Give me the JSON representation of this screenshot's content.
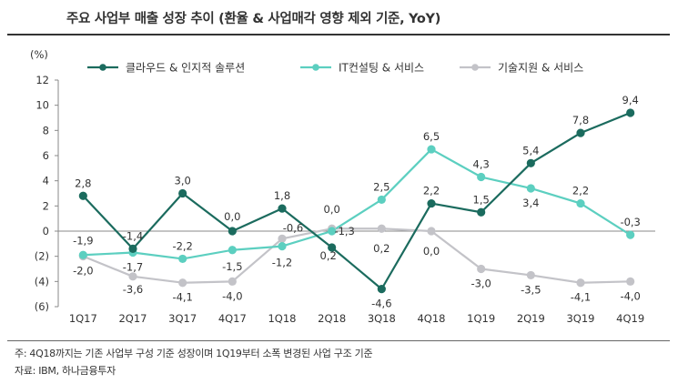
{
  "title": "주요 사업부 매출 성장 추이 (환율 & 사업매각 영향 제외 기준, YoY)",
  "notes": {
    "line1": "주: 4Q18까지는 기존 사업부 구성 기준 성장이며 1Q19부터 소폭 변경된 사업 구조 기준",
    "line2": "자료: IBM, 하나금융투자"
  },
  "chart_data": {
    "type": "line",
    "unit_label": "(%)",
    "categories": [
      "1Q17",
      "2Q17",
      "3Q17",
      "4Q17",
      "1Q18",
      "2Q18",
      "3Q18",
      "4Q18",
      "1Q19",
      "2Q19",
      "3Q19",
      "4Q19"
    ],
    "ylim": [
      -6,
      12
    ],
    "yticks": [
      {
        "value": 12,
        "label": "12"
      },
      {
        "value": 10,
        "label": "10"
      },
      {
        "value": 8,
        "label": "8"
      },
      {
        "value": 6,
        "label": "6"
      },
      {
        "value": 4,
        "label": "4"
      },
      {
        "value": 2,
        "label": "2"
      },
      {
        "value": 0,
        "label": "0"
      },
      {
        "value": -2,
        "label": "(2)"
      },
      {
        "value": -4,
        "label": "(4)"
      },
      {
        "value": -6,
        "label": "(6)"
      }
    ],
    "grid": false,
    "legend_position": "top",
    "series": [
      {
        "name": "클라우드 & 인지적 솔루션",
        "color": "#1b6b5e",
        "values": [
          2.8,
          -1.4,
          3.0,
          0.0,
          1.8,
          -1.3,
          -4.6,
          2.2,
          1.5,
          5.4,
          7.8,
          9.4
        ],
        "labels": [
          "2,8",
          "-1,4",
          "3,0",
          "0,0",
          "1,8",
          "-1,3",
          "-4,6",
          "2,2",
          "1,5",
          "5,4",
          "7,8",
          "9,4"
        ]
      },
      {
        "name": "IT컨설팅 & 서비스",
        "color": "#5ccfc0",
        "values": [
          -1.9,
          -1.7,
          -2.2,
          -1.5,
          -1.2,
          0.0,
          2.5,
          6.5,
          4.3,
          3.4,
          2.2,
          -0.3
        ],
        "labels": [
          "-1,9",
          "-1,7",
          "-2,2",
          "-1,5",
          "-1,2",
          "0,0",
          "2,5",
          "6,5",
          "4,3",
          "3,4",
          "2,2",
          "-0,3"
        ]
      },
      {
        "name": "기술지원 & 서비스",
        "color": "#c3c3c8",
        "values": [
          -2.0,
          -3.6,
          -4.1,
          -4.0,
          -0.6,
          0.2,
          0.2,
          0.0,
          -3.0,
          -3.5,
          -4.1,
          -4.0
        ],
        "labels": [
          "-2,0",
          "-3,6",
          "-4,1",
          "-4,0",
          "-0,6",
          "0,2",
          "0,2",
          "0,0",
          "-3,0",
          "-3,5",
          "-4,1",
          "-4,0"
        ]
      }
    ]
  }
}
